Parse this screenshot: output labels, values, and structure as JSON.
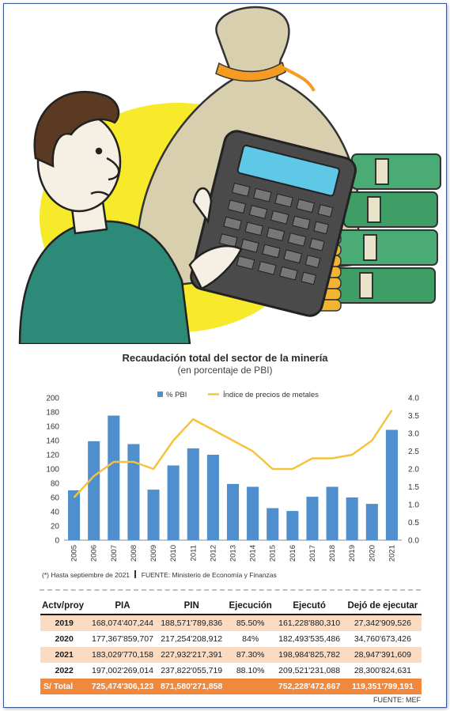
{
  "chart_data": {
    "type": "bar",
    "title": "Recaudación total del sector de la minería",
    "subtitle": "(en porcentaje de PBI)",
    "categories": [
      "2005",
      "2006",
      "2007",
      "2008",
      "2009",
      "2010",
      "2011",
      "2012",
      "2013",
      "2014",
      "2015",
      "2016",
      "2017",
      "2018",
      "2019",
      "2020",
      "2021"
    ],
    "series": [
      {
        "name": "% PBI",
        "type": "bar",
        "axis": "left",
        "color": "#4f8fce",
        "values": [
          70,
          139,
          175,
          135,
          71,
          105,
          129,
          120,
          79,
          75,
          45,
          41,
          61,
          75,
          60,
          51,
          155
        ]
      },
      {
        "name": "Índice de precios de metales",
        "type": "line",
        "axis": "right",
        "color": "#f5c33b",
        "values": [
          1.2,
          1.8,
          2.2,
          2.2,
          2.0,
          2.8,
          3.4,
          3.1,
          2.8,
          2.5,
          2.0,
          2.0,
          2.3,
          2.3,
          2.4,
          2.8,
          3.65
        ]
      }
    ],
    "y_left": {
      "min": 0,
      "max": 200,
      "ticks": [
        0,
        20,
        40,
        60,
        80,
        100,
        120,
        140,
        160,
        180,
        200
      ]
    },
    "y_right": {
      "min": 0,
      "max": 4,
      "ticks": [
        "0.0",
        "0.5",
        "1.0",
        "1.5",
        "2.0",
        "2.5",
        "3.0",
        "3.5",
        "4.0"
      ]
    },
    "legend_position": "top"
  },
  "note": "(*) Hasta septiembre de 2021",
  "note_source": "FUENTE: Ministerio de Economía y Finanzas",
  "table": {
    "headers": [
      "Actv/proy",
      "PIA",
      "PIN",
      "Ejecución",
      "Ejecutó",
      "Dejó de ejecutar"
    ],
    "rows": [
      [
        "2019",
        "168,074'407,244",
        "188,571'789,836",
        "85.50%",
        "161,228'880,310",
        "27,342'909,526"
      ],
      [
        "2020",
        "177,367'859,707",
        "217,254'208,912",
        "84%",
        "182,493'535,486",
        "34,760'673,426"
      ],
      [
        "2021",
        "183,029'770,158",
        "227,932'217,391",
        "87.30%",
        "198,984'825,782",
        "28,947'391,609"
      ],
      [
        "2022",
        "197,002'269,014",
        "237,822'055,719",
        "88.10%",
        "209,521'231,088",
        "28,300'824,631"
      ]
    ],
    "total": [
      "S/ Total",
      "725,474'306,123",
      "871,580'271,858",
      "",
      "752,228'472,667",
      "119,351'799,191"
    ]
  },
  "footer_source": "FUENTE: MEF",
  "colors": {
    "bar": "#4f8fce",
    "line": "#f5c33b",
    "highlight_row": "#fbdcc2",
    "total_row": "#f0883e"
  }
}
